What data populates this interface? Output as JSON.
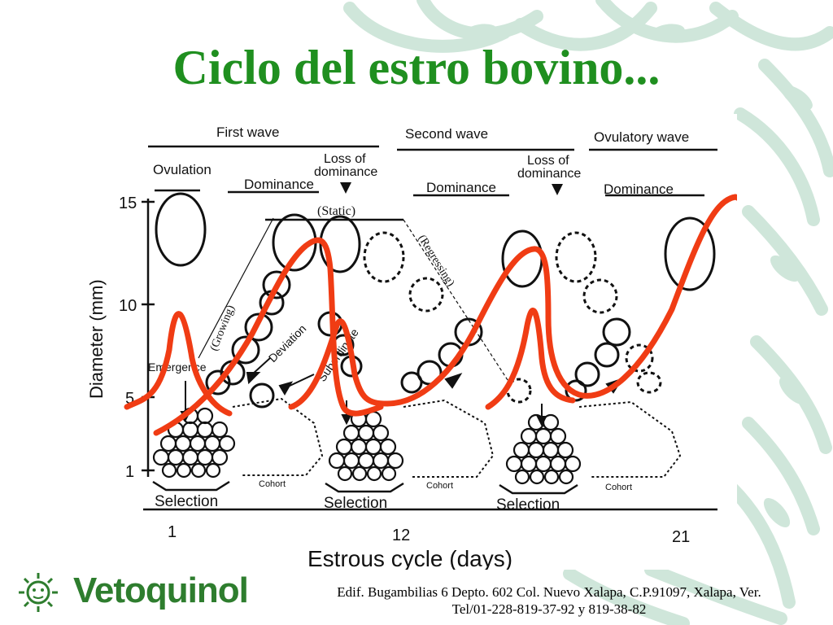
{
  "slide": {
    "title": "Ciclo del estro bovino...",
    "footer_line1": "Edif. Bugambilias 6 Depto. 602 Col. Nuevo Xalapa, C.P.91097, Xalapa, Ver.",
    "footer_line2": "Tel/01-228-819-37-92 y 819-38-82",
    "logo_text": "Vetoquinol",
    "colors": {
      "title": "#1f8f1f",
      "overlay": "#f03c14",
      "logo": "#2e7d2e",
      "decor": "#cfe6da"
    }
  },
  "diagram": {
    "waves": [
      "First wave",
      "Second wave",
      "Ovulatory wave"
    ],
    "ovulation": "Ovulation",
    "dominance": "Dominance",
    "loss_of_dominance_1": "Loss of",
    "loss_of_dominance_2": "dominance",
    "static": "(Static)",
    "regressing": "(Regressing)",
    "growing": "(Growing)",
    "deviation": "Deviation",
    "subordinate": "Subordinate",
    "emergence": "Emergence",
    "selection": "Selection",
    "cohort": "Cohort",
    "y_axis_label": "Diameter (mm)",
    "y_ticks": [
      "15",
      "10",
      "5",
      "1"
    ],
    "x_ticks": [
      "1",
      "12",
      "21"
    ],
    "x_axis_label": "Estrous cycle (days)"
  }
}
